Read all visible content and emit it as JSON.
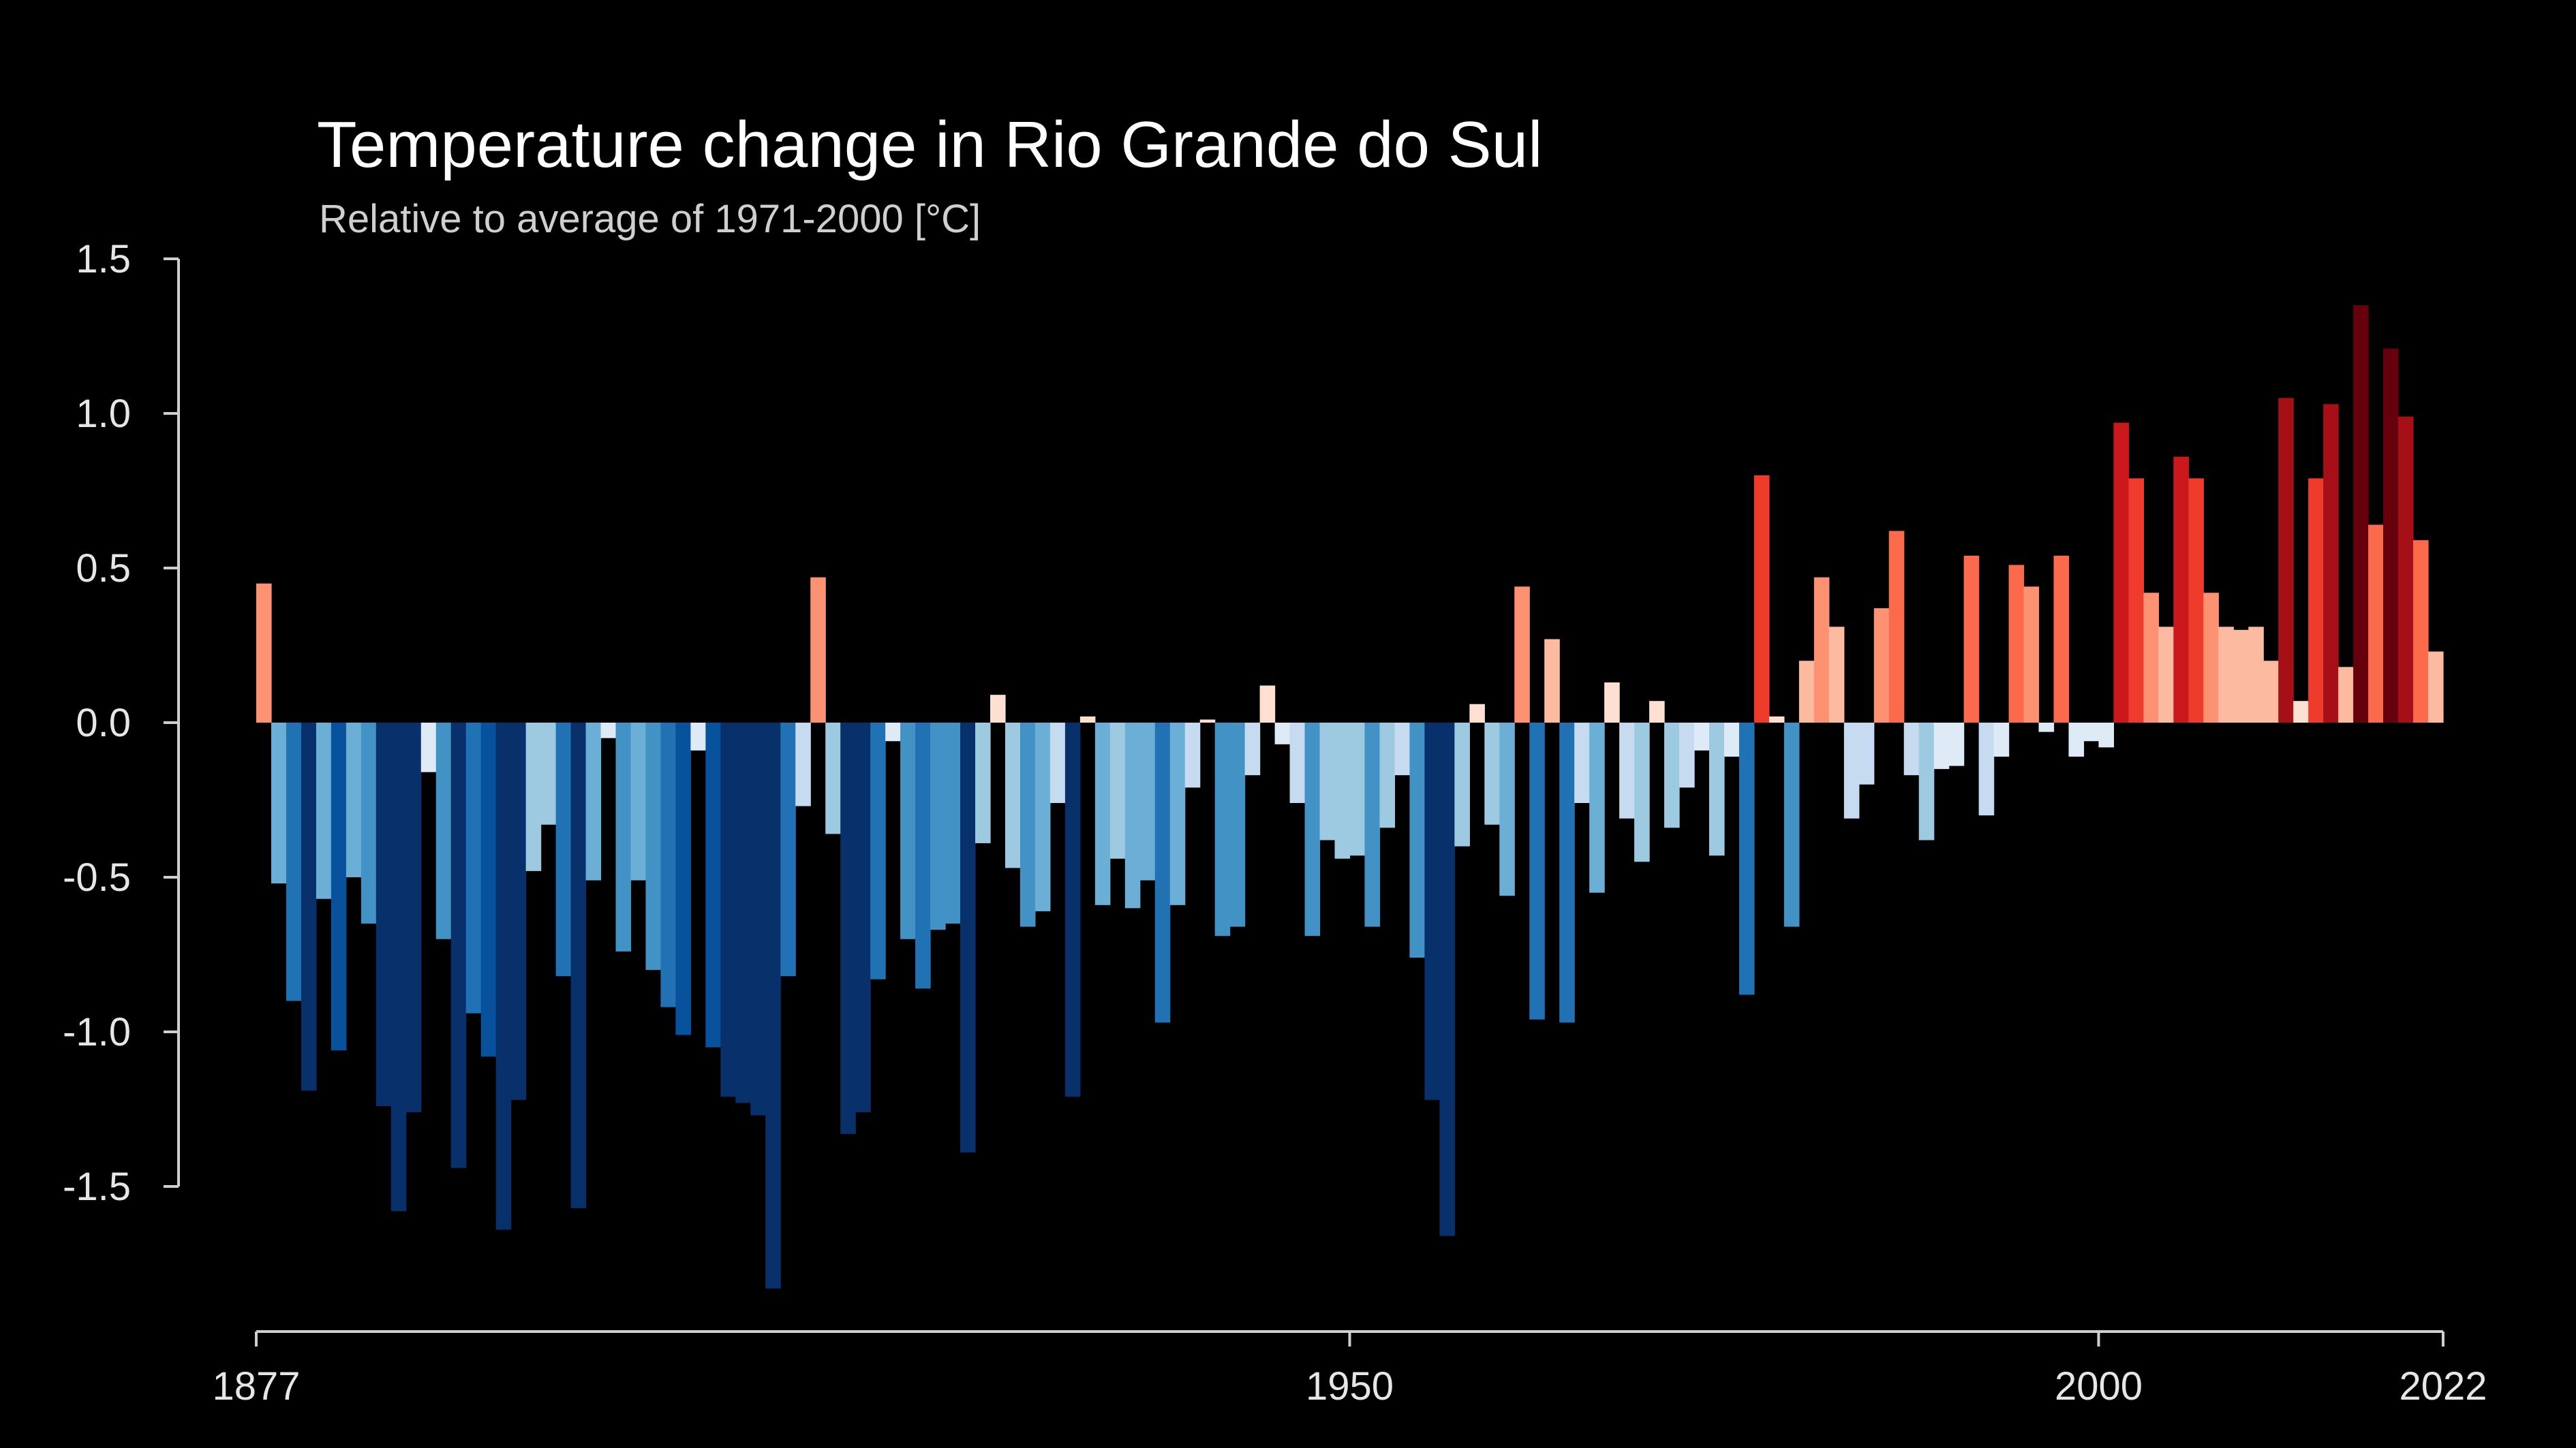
{
  "chart_data": {
    "type": "bar",
    "title": "Temperature change in Rio Grande do Sul",
    "subtitle": "Relative to average of 1971-2000  [°C]",
    "xlabel": "",
    "ylabel": "",
    "x_start": 1877,
    "x_end": 2022,
    "xlim": [
      1877,
      2022
    ],
    "ylim": [
      -1.9,
      1.5
    ],
    "x_ticks": [
      1877,
      1950,
      2000,
      2022
    ],
    "y_ticks": [
      1.5,
      1.0,
      0.5,
      0.0,
      -0.5,
      -1.0,
      -1.5
    ],
    "y_tick_labels": [
      "1.5",
      "1.0",
      "0.5",
      "0.0",
      "-0.5",
      "-1.0",
      "-1.5"
    ],
    "grid": false,
    "legend": "none",
    "color_scale": {
      "negative": [
        "#deebf7",
        "#c6dbef",
        "#9ecae1",
        "#6baed6",
        "#4292c6",
        "#2171b5",
        "#08519c",
        "#08306b"
      ],
      "positive": [
        "#fee0d2",
        "#fcbba1",
        "#fc9272",
        "#fb6a4a",
        "#ef3b2c",
        "#cb181d",
        "#a50f15",
        "#67000d"
      ]
    },
    "values": [
      0.45,
      -0.52,
      -0.9,
      -1.19,
      -0.57,
      -1.06,
      -0.5,
      -0.65,
      -1.24,
      -1.58,
      -1.26,
      -0.16,
      -0.7,
      -1.44,
      -0.94,
      -1.08,
      -1.64,
      -1.22,
      -0.48,
      -0.33,
      -0.82,
      -1.57,
      -0.51,
      -0.05,
      -0.74,
      -0.51,
      -0.8,
      -0.92,
      -1.01,
      -0.09,
      -1.05,
      -1.21,
      -1.23,
      -1.27,
      -1.83,
      -0.82,
      -0.27,
      0.47,
      -0.36,
      -1.33,
      -1.26,
      -0.83,
      -0.06,
      -0.7,
      -0.86,
      -0.67,
      -0.65,
      -1.39,
      -0.39,
      0.09,
      -0.47,
      -0.66,
      -0.61,
      -0.26,
      -1.21,
      0.02,
      -0.59,
      -0.44,
      -0.6,
      -0.51,
      -0.97,
      -0.59,
      -0.21,
      0.01,
      -0.69,
      -0.66,
      -0.17,
      0.12,
      -0.07,
      -0.26,
      -0.69,
      -0.38,
      -0.44,
      -0.43,
      -0.66,
      -0.34,
      -0.17,
      -0.76,
      -1.22,
      -1.66,
      -0.4,
      0.06,
      -0.33,
      -0.56,
      0.44,
      -0.96,
      0.27,
      -0.97,
      -0.26,
      -0.55,
      0.13,
      -0.31,
      -0.45,
      0.07,
      -0.34,
      -0.21,
      -0.09,
      -0.43,
      -0.11,
      -0.88,
      0.8,
      0.02,
      -0.66,
      0.2,
      0.47,
      0.31,
      -0.31,
      -0.2,
      0.37,
      0.62,
      -0.17,
      -0.38,
      -0.15,
      -0.14,
      0.54,
      -0.3,
      -0.11,
      0.51,
      0.44,
      -0.03,
      0.54,
      -0.11,
      -0.06,
      -0.08,
      0.97,
      0.79,
      0.42,
      0.31,
      0.86,
      0.79,
      0.42,
      0.31,
      0.3,
      0.31,
      0.2,
      1.05,
      0.07,
      0.79,
      1.03,
      0.18,
      1.35,
      0.64,
      1.21,
      0.99,
      0.59,
      0.23
    ]
  }
}
